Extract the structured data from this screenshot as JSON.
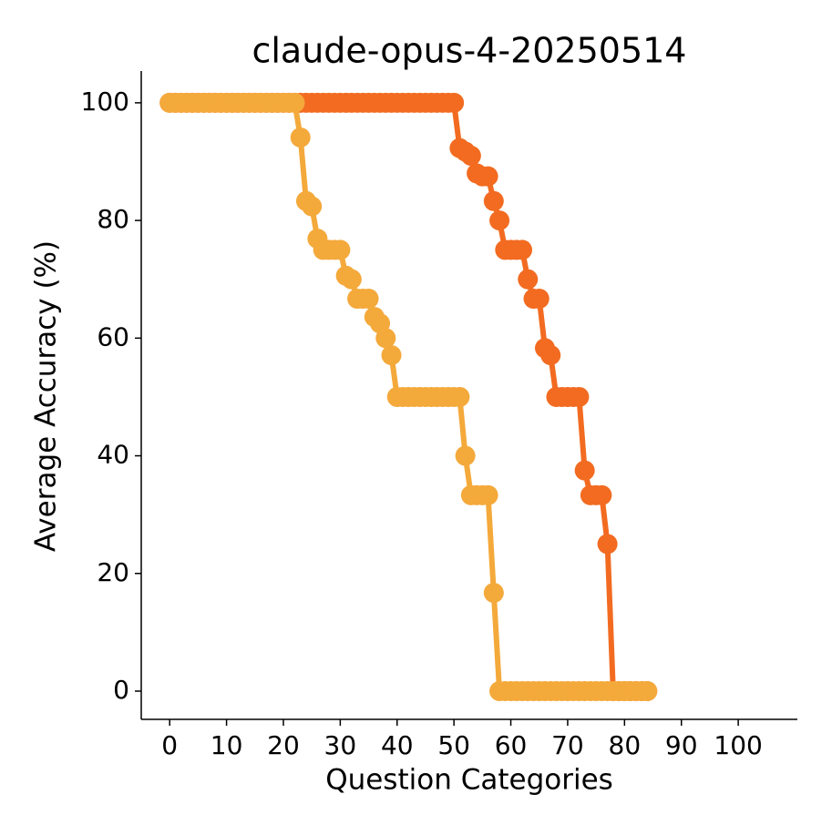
{
  "chart_data": {
    "type": "line",
    "title": "claude-opus-4-20250514",
    "x_label": "Question Categories",
    "y_label": "Average Accuracy (%)",
    "x": [
      0,
      1,
      2,
      3,
      4,
      5,
      6,
      7,
      8,
      9,
      10,
      11,
      12,
      13,
      14,
      15,
      16,
      17,
      18,
      19,
      20,
      21,
      22,
      23,
      24,
      25,
      26,
      27,
      28,
      29,
      30,
      31,
      32,
      33,
      34,
      35,
      36,
      37,
      38,
      39,
      40,
      41,
      42,
      43,
      44,
      45,
      46,
      47,
      48,
      49,
      50,
      51,
      52,
      53,
      54,
      55,
      56,
      57,
      58,
      59,
      60,
      61,
      62,
      63,
      64,
      65,
      66,
      67,
      68,
      69,
      70,
      71,
      72,
      73,
      74,
      75,
      76,
      77,
      78,
      79,
      80,
      81,
      82,
      83,
      84
    ],
    "series": [
      {
        "color": "#f26b21",
        "values": [
          100,
          100,
          100,
          100,
          100,
          100,
          100,
          100,
          100,
          100,
          100,
          100,
          100,
          100,
          100,
          100,
          100,
          100,
          100,
          100,
          100,
          100,
          100,
          100,
          100,
          100,
          100,
          100,
          100,
          100,
          100,
          100,
          100,
          100,
          100,
          100,
          100,
          100,
          100,
          100,
          100,
          100,
          100,
          100,
          100,
          100,
          100,
          100,
          100,
          100,
          100,
          92.3,
          91.7,
          91,
          88,
          87.5,
          87.5,
          83.3,
          80,
          75,
          75,
          75,
          75,
          70,
          66.7,
          66.7,
          58.3,
          57.1,
          50,
          50,
          50,
          50,
          50,
          37.5,
          33.3,
          33.3,
          33.3,
          25,
          0,
          0,
          0,
          0,
          0,
          0,
          0
        ]
      },
      {
        "color": "#f4a93b",
        "values": [
          100,
          100,
          100,
          100,
          100,
          100,
          100,
          100,
          100,
          100,
          100,
          100,
          100,
          100,
          100,
          100,
          100,
          100,
          100,
          100,
          100,
          100,
          100,
          94.1,
          83.3,
          82.4,
          76.9,
          75,
          75,
          75,
          75,
          70.6,
          70,
          66.7,
          66.7,
          66.7,
          63.6,
          62.5,
          60,
          57.1,
          50,
          50,
          50,
          50,
          50,
          50,
          50,
          50,
          50,
          50,
          50,
          50,
          40,
          33.3,
          33.3,
          33.3,
          33.3,
          16.7,
          0,
          0,
          0,
          0,
          0,
          0,
          0,
          0,
          0,
          0,
          0,
          0,
          0,
          0,
          0,
          0,
          0,
          0,
          0,
          0,
          0,
          0,
          0,
          0,
          0,
          0,
          0
        ]
      }
    ],
    "xlim": [
      -5,
      110.4
    ],
    "ylim": [
      -4.8,
      105.4
    ],
    "xticks": [
      0,
      10,
      20,
      30,
      40,
      50,
      60,
      70,
      80,
      90,
      100
    ],
    "yticks": [
      0,
      20,
      40,
      60,
      80,
      100
    ]
  }
}
